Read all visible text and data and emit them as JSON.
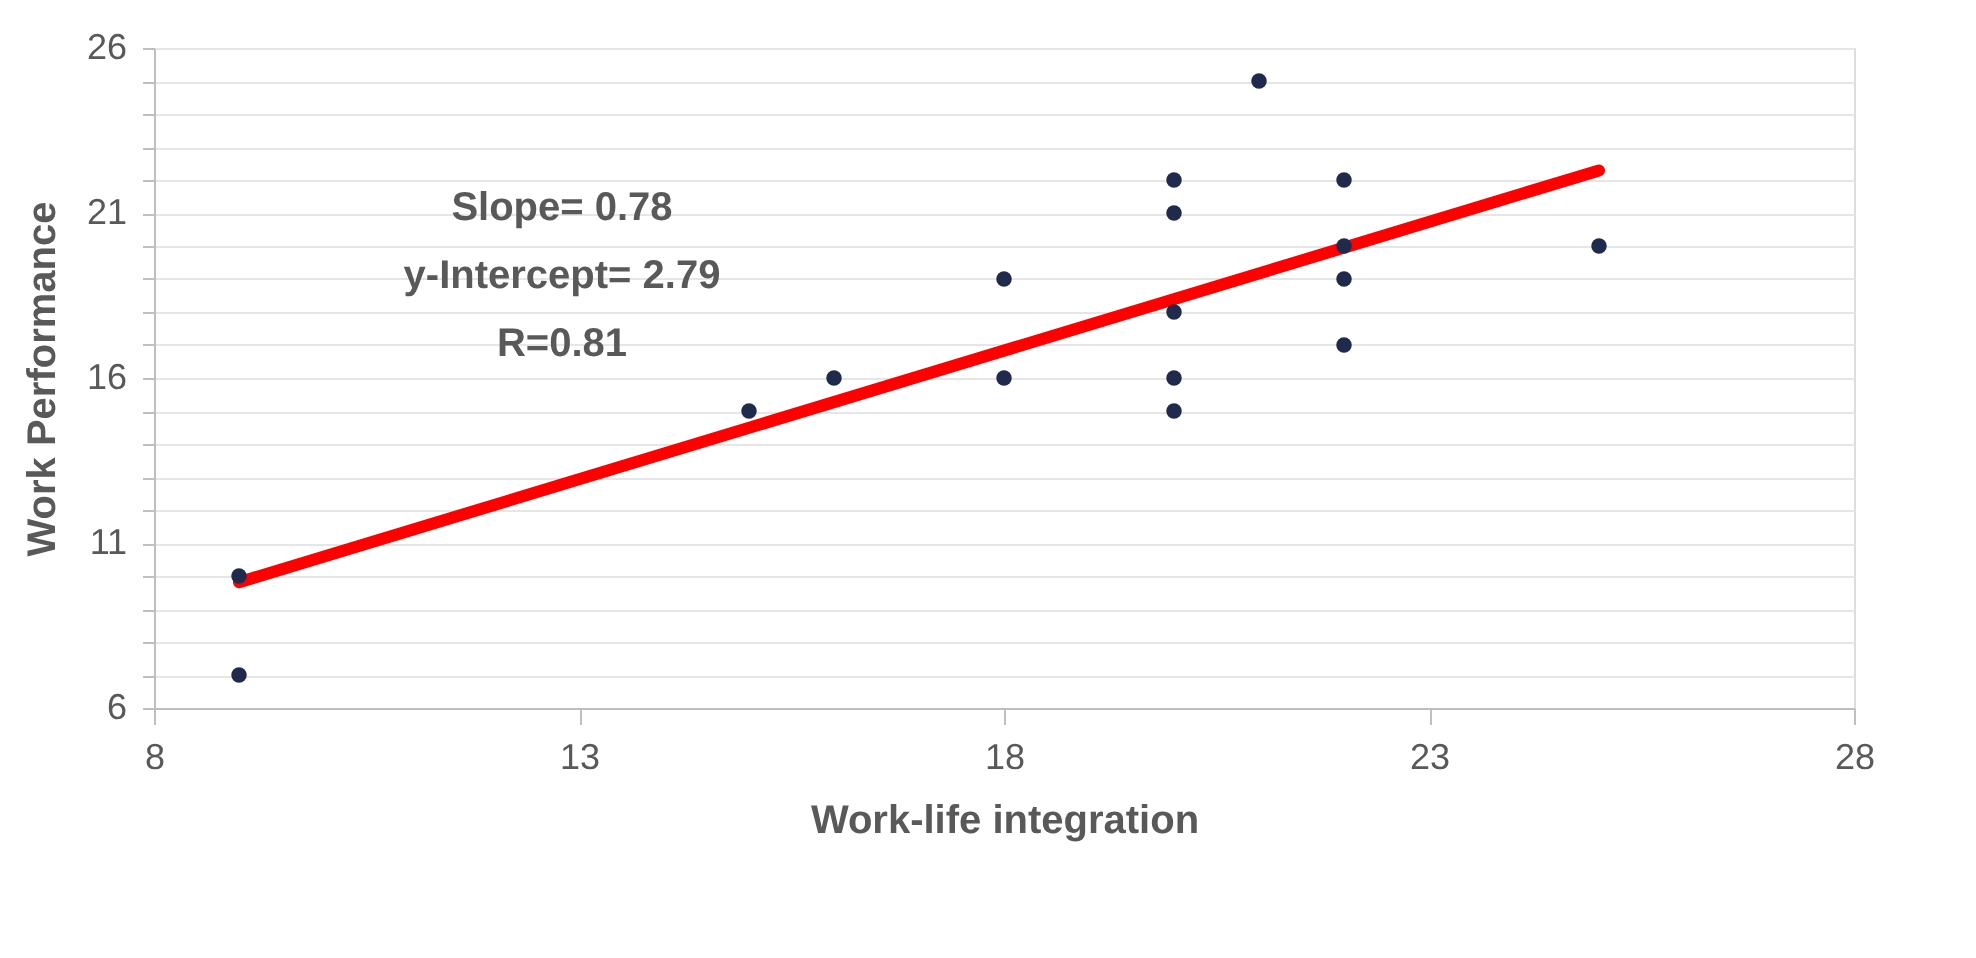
{
  "chart_data": {
    "type": "scatter",
    "xlabel": "Work-life integration",
    "ylabel": "Work Performance",
    "annotations": [
      "Slope= 0.78",
      "y-Intercept= 2.79",
      "R=0.81"
    ],
    "series": [
      {
        "color": "#1f2a4d",
        "marker": "circle",
        "x": [
          9,
          9,
          15,
          16,
          18,
          18,
          20,
          20,
          20,
          20,
          20,
          21,
          22,
          22,
          22,
          22,
          25
        ],
        "values": [
          10,
          7,
          15,
          16,
          19,
          16,
          22,
          21,
          18,
          16,
          15,
          25,
          22,
          20,
          19,
          17,
          20
        ]
      },
      {
        "type": "line",
        "color": "#ff0000",
        "marker": "none",
        "line_style": "solid",
        "x": [
          9,
          25
        ],
        "values": [
          9.81,
          22.29
        ]
      }
    ],
    "xlim": [
      8,
      28
    ],
    "xticks": [
      8,
      13,
      18,
      23,
      28
    ],
    "ylim": [
      6,
      26
    ],
    "yticks": [
      6,
      {
        "value": 7,
        "label": null
      },
      {
        "value": 8,
        "label": null
      },
      {
        "value": 9,
        "label": null
      },
      {
        "value": 10,
        "label": null
      },
      11,
      {
        "value": 12,
        "label": null
      },
      {
        "value": 13,
        "label": null
      },
      {
        "value": 14,
        "label": null
      },
      {
        "value": 15,
        "label": null
      },
      16,
      {
        "value": 17,
        "label": null
      },
      {
        "value": 18,
        "label": null
      },
      {
        "value": 19,
        "label": null
      },
      {
        "value": 20,
        "label": null
      },
      21,
      {
        "value": 22,
        "label": null
      },
      {
        "value": 23,
        "label": null
      },
      {
        "value": 24,
        "label": null
      },
      {
        "value": 25,
        "label": null
      },
      26
    ],
    "grid": "y"
  }
}
